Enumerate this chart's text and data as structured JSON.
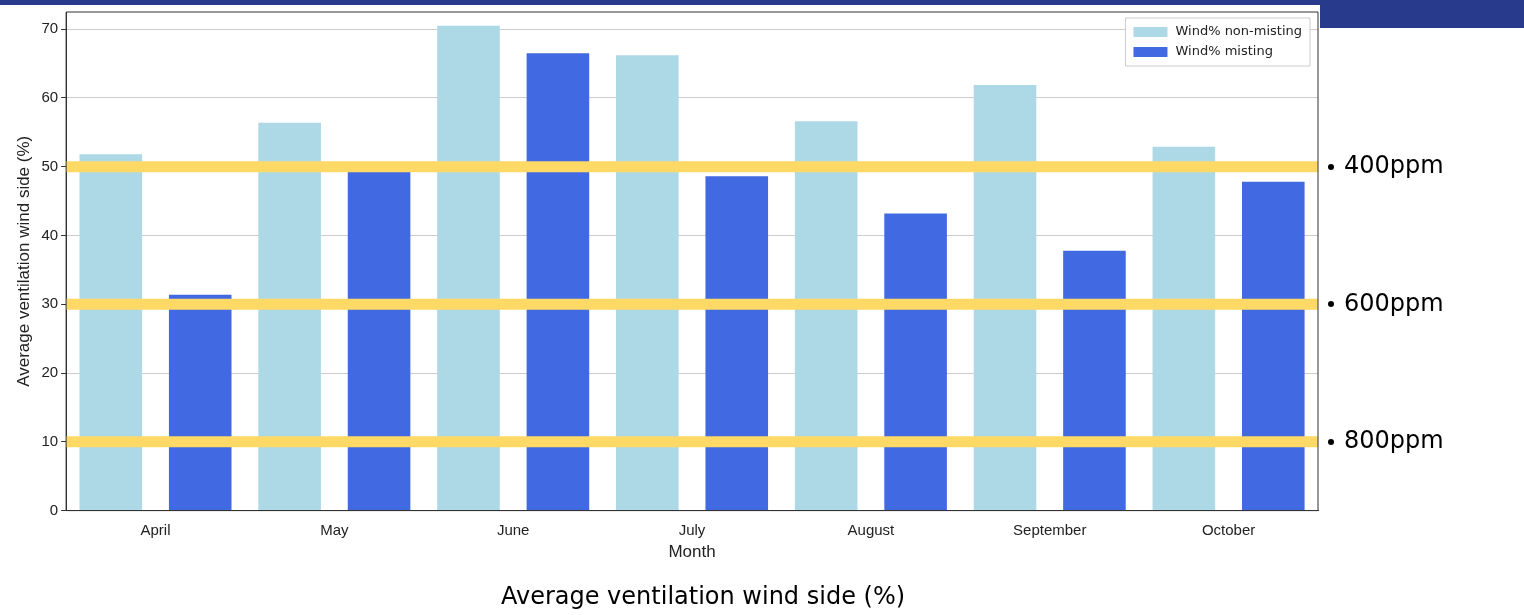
{
  "chart_data": {
    "type": "bar",
    "xlabel": "Month",
    "ylabel": "Average ventilation wind side (%)",
    "categories": [
      "April",
      "May",
      "June",
      "July",
      "August",
      "September",
      "October"
    ],
    "series": [
      {
        "name": "Wind% non-misting",
        "color": "#add8e6",
        "values": [
          51.8,
          56.4,
          70.5,
          66.2,
          56.6,
          61.9,
          52.9
        ]
      },
      {
        "name": "Wind% misting",
        "color": "#4169e1",
        "values": [
          31.4,
          49.4,
          66.5,
          48.6,
          43.2,
          37.8,
          47.8
        ]
      }
    ],
    "ylim": [
      0,
      72.5
    ],
    "yticks": [
      0,
      10,
      20,
      30,
      40,
      50,
      60,
      70
    ],
    "grid": "y",
    "legend": "top right",
    "bands": [
      {
        "axis": "y",
        "from": 49.2,
        "to": 50.8,
        "label": "400ppm",
        "color": "#ffd966"
      },
      {
        "axis": "y",
        "from": 29.2,
        "to": 30.8,
        "label": "600ppm",
        "color": "#ffd966"
      },
      {
        "axis": "y",
        "from": 9.2,
        "to": 10.8,
        "label": "800ppm",
        "color": "#ffd966"
      }
    ],
    "annotations": [
      "Average ventilation wind side (%)"
    ]
  }
}
